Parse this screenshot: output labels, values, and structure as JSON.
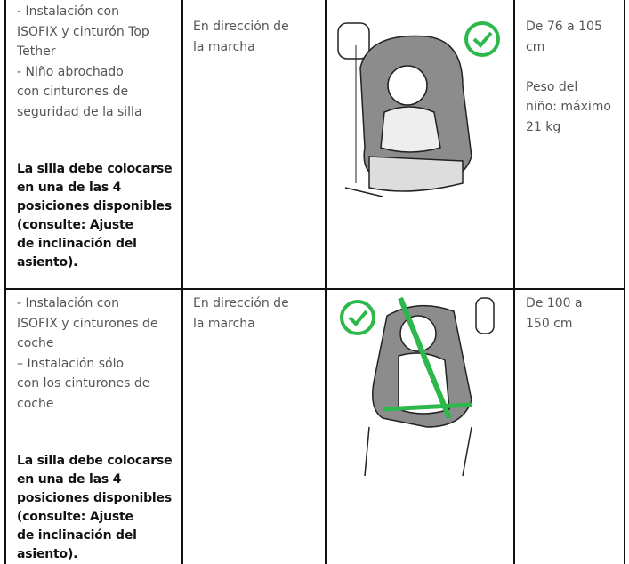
{
  "table": {
    "rows": [
      {
        "installation": [
          "- Instalación con",
          "ISOFIX y cinturón Top",
          "Tether",
          "- Niño abrochado",
          "con cinturones de",
          "seguridad de la silla"
        ],
        "note": [
          "La silla debe colocarse",
          "en una de las 4",
          "posiciones disponibles",
          "(consulte: Ajuste",
          "de inclinación del",
          "asiento)."
        ],
        "direction": [
          "En dirección de",
          "la marcha"
        ],
        "size": [
          "De 76 a 105",
          "cm",
          "",
          "Peso del",
          "niño: máximo",
          "21 kg"
        ]
      },
      {
        "installation": [
          "- Instalación con",
          "ISOFIX y cinturones de",
          "coche",
          "– Instalación sólo",
          "con los cinturones de",
          "coche"
        ],
        "note": [
          "La silla debe colocarse",
          "en una de las 4",
          "posiciones disponibles",
          "(consulte: Ajuste",
          "de inclinación del",
          "asiento)."
        ],
        "direction": [
          "En dirección de",
          "la marcha"
        ],
        "size": [
          "De 100 a",
          "150 cm"
        ]
      }
    ]
  }
}
